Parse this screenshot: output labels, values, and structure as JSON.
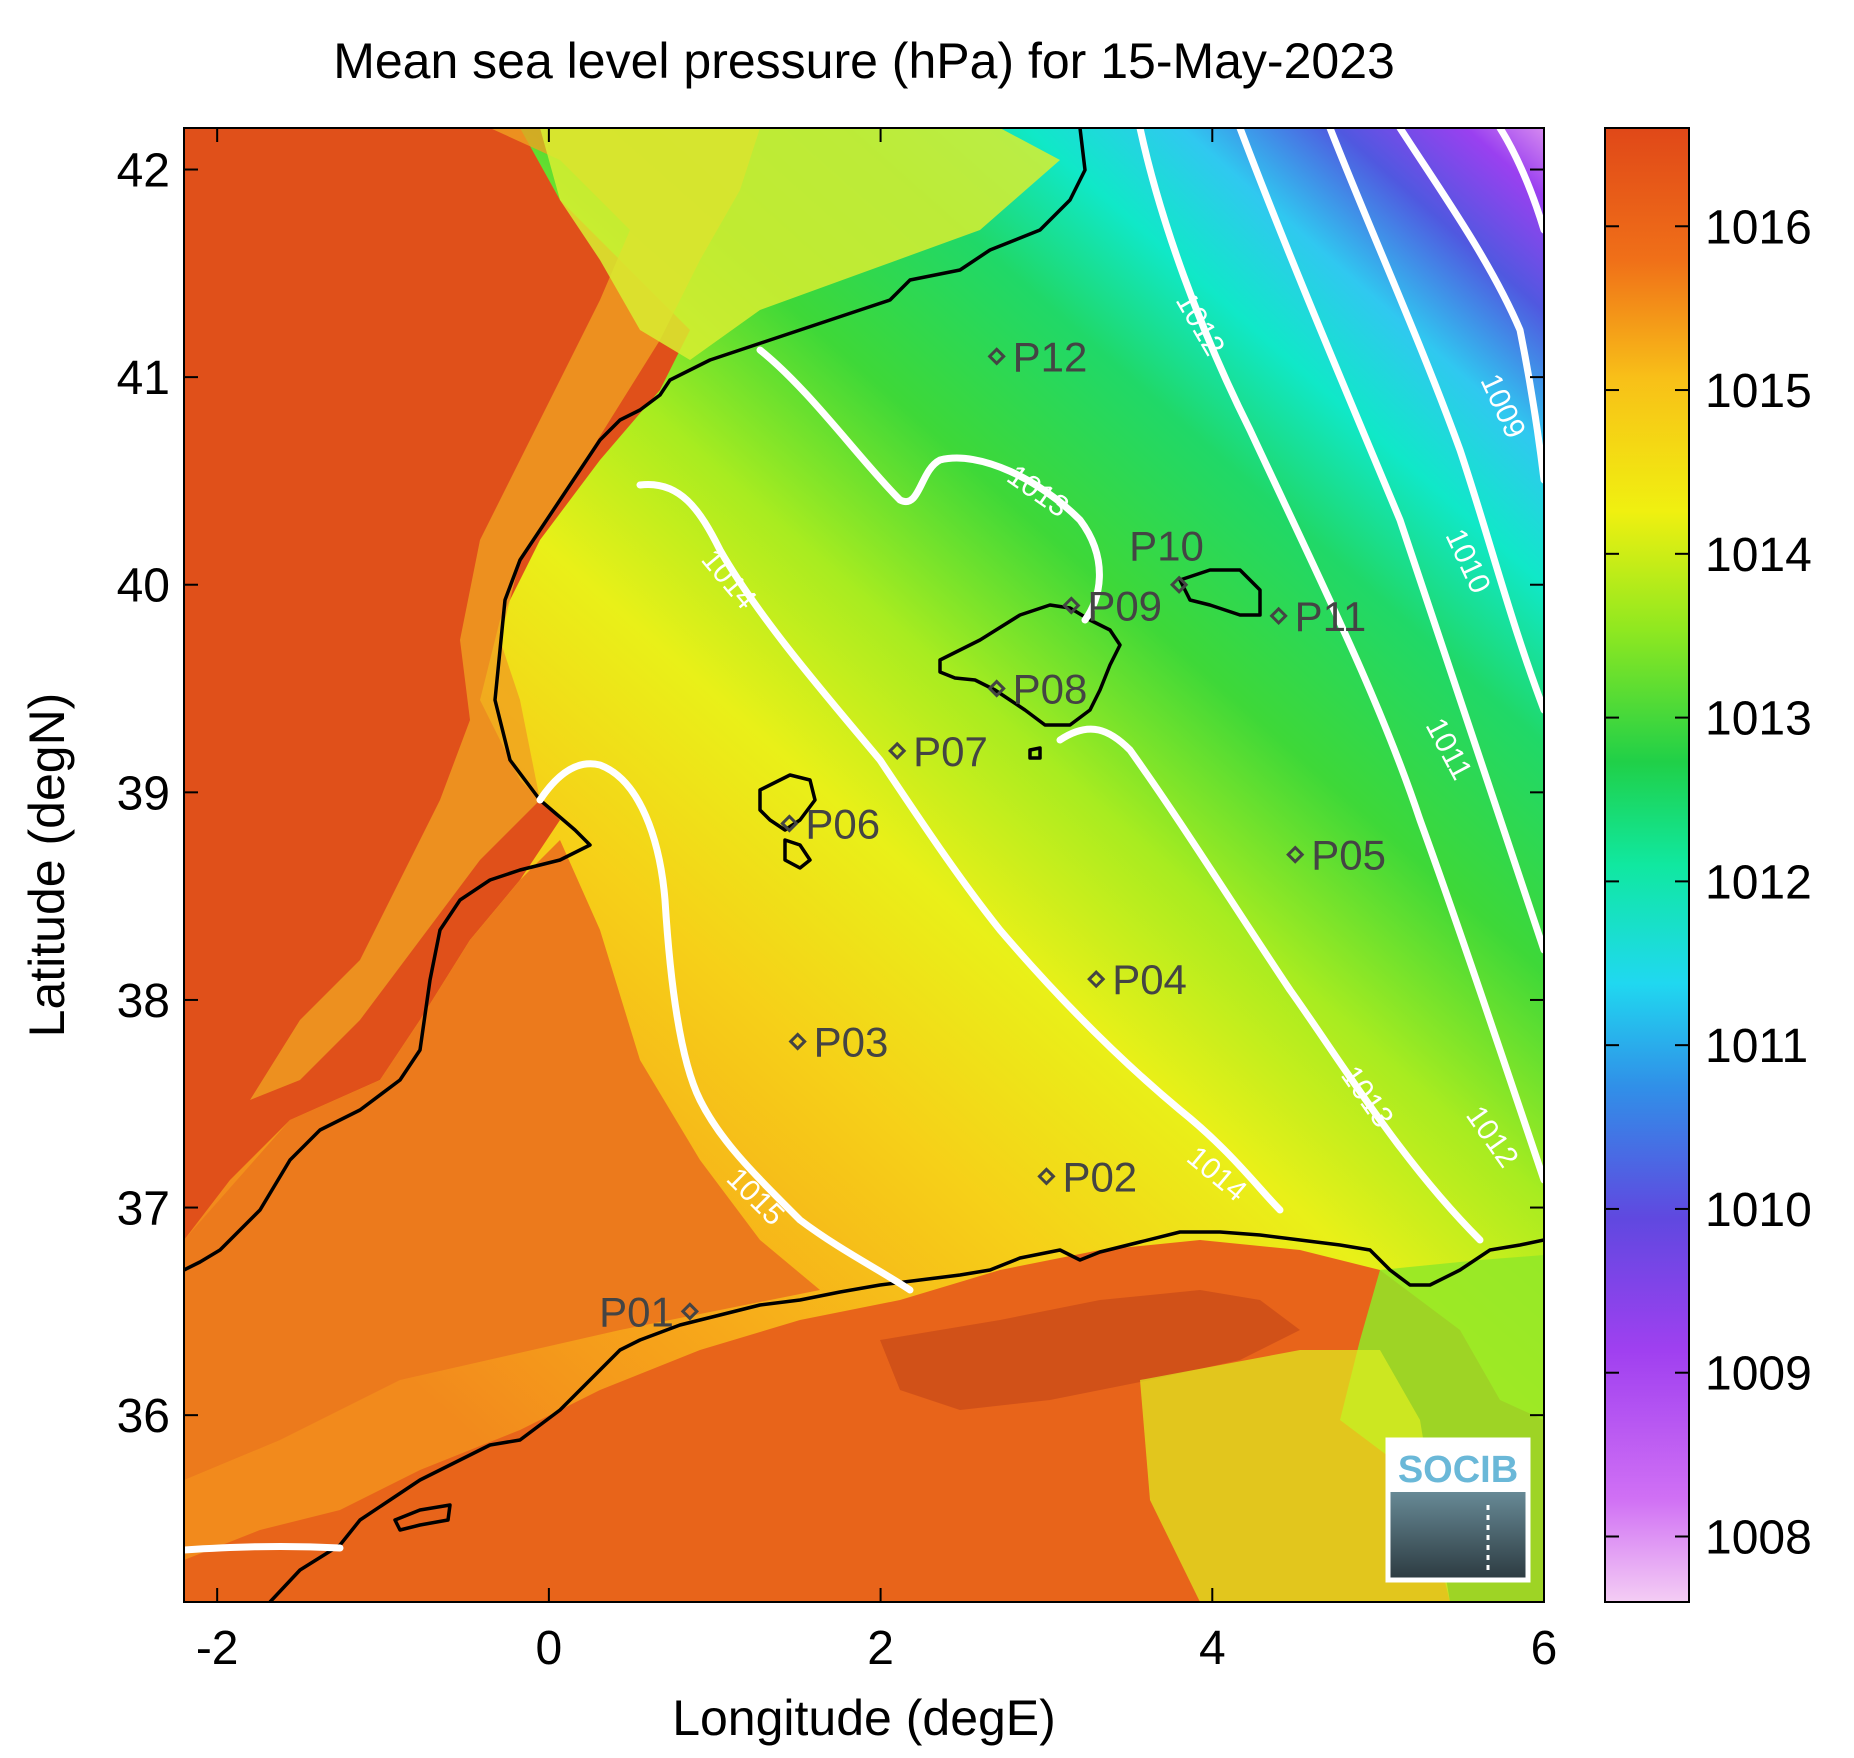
{
  "chart_data": {
    "type": "heatmap",
    "title": "Mean sea level pressure (hPa) for 15-May-2023",
    "xlabel": "Longitude (degE)",
    "ylabel": "Latitude (degN)",
    "xlim": [
      -2.2,
      6.0
    ],
    "ylim": [
      35.1,
      42.2
    ],
    "x_ticks": [
      -2,
      0,
      2,
      4,
      6
    ],
    "y_ticks": [
      36,
      37,
      38,
      39,
      40,
      41,
      42
    ],
    "colorbar": {
      "range": [
        1007.6,
        1016.6
      ],
      "ticks": [
        1008,
        1009,
        1010,
        1011,
        1012,
        1013,
        1014,
        1015,
        1016
      ],
      "colors": [
        "#f0c8f0",
        "#c040f8",
        "#6040e0",
        "#30b8f0",
        "#10f0d0",
        "#20d040",
        "#b8f020",
        "#f0f010",
        "#f8b818",
        "#f06818",
        "#e04818"
      ]
    },
    "contour_labels": [
      "1009",
      "1010",
      "1011",
      "1012",
      "1012",
      "1013",
      "1013",
      "1014",
      "1014",
      "1015"
    ],
    "stations": [
      {
        "name": "P01",
        "lon": 0.85,
        "lat": 36.5
      },
      {
        "name": "P02",
        "lon": 3.0,
        "lat": 37.15
      },
      {
        "name": "P03",
        "lon": 1.5,
        "lat": 37.8
      },
      {
        "name": "P04",
        "lon": 3.3,
        "lat": 38.1
      },
      {
        "name": "P05",
        "lon": 4.5,
        "lat": 38.7
      },
      {
        "name": "P06",
        "lon": 1.45,
        "lat": 38.85
      },
      {
        "name": "P07",
        "lon": 2.1,
        "lat": 39.2
      },
      {
        "name": "P08",
        "lon": 2.7,
        "lat": 39.5
      },
      {
        "name": "P09",
        "lon": 3.15,
        "lat": 39.9
      },
      {
        "name": "P10",
        "lon": 3.8,
        "lat": 40.0
      },
      {
        "name": "P11",
        "lon": 4.4,
        "lat": 39.85
      },
      {
        "name": "P12",
        "lon": 2.7,
        "lat": 41.1
      }
    ],
    "grid": false
  },
  "logo": {
    "text": "SOCIB"
  }
}
